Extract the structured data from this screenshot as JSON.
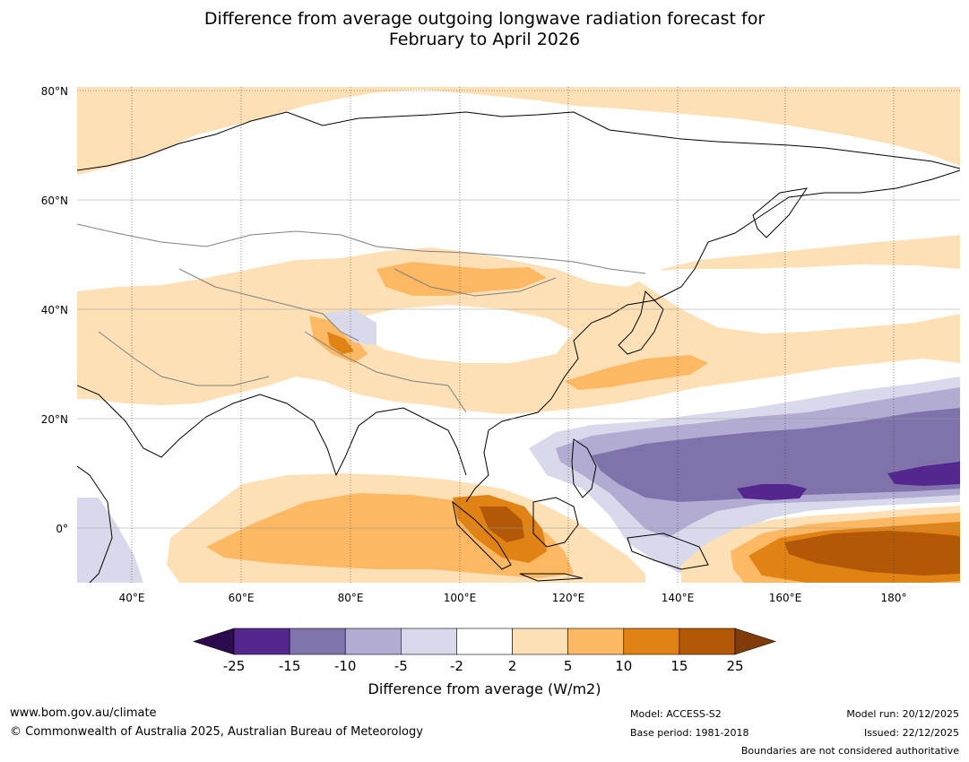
{
  "title": {
    "line1": "Difference from average outgoing longwave radiation forecast for",
    "line2": "February to April 2026"
  },
  "map": {
    "lat_labels": [
      "80°N",
      "60°N",
      "40°N",
      "20°N",
      "0°"
    ],
    "lon_labels": [
      "40°E",
      "60°E",
      "80°E",
      "100°E",
      "120°E",
      "140°E",
      "160°E",
      "180°"
    ],
    "lat_range": [
      -10,
      81
    ],
    "lon_range": [
      30,
      191
    ],
    "grid": true
  },
  "legend": {
    "ticks": [
      "-25",
      "-15",
      "-10",
      "-5",
      "-2",
      "2",
      "5",
      "10",
      "15",
      "25"
    ],
    "colors": [
      "#2d0a4e",
      "#54278f",
      "#8073ac",
      "#b2abd2",
      "#d8daeb",
      "#ffffff",
      "#fee0b6",
      "#fdb863",
      "#e08214",
      "#b35806",
      "#7f3b08"
    ],
    "label": "Difference from average (W/m2)"
  },
  "footer": {
    "url": "www.bom.gov.au/climate",
    "copyright": "© Commonwealth of Australia 2025, Australian Bureau of Meteorology",
    "model": "Model: ACCESS-S2",
    "base_period": "Base period: 1981-2018",
    "model_run": "Model run: 20/12/2025",
    "issued": "Issued: 22/12/2025",
    "disclaimer": "Boundaries are not considered authoritative"
  }
}
